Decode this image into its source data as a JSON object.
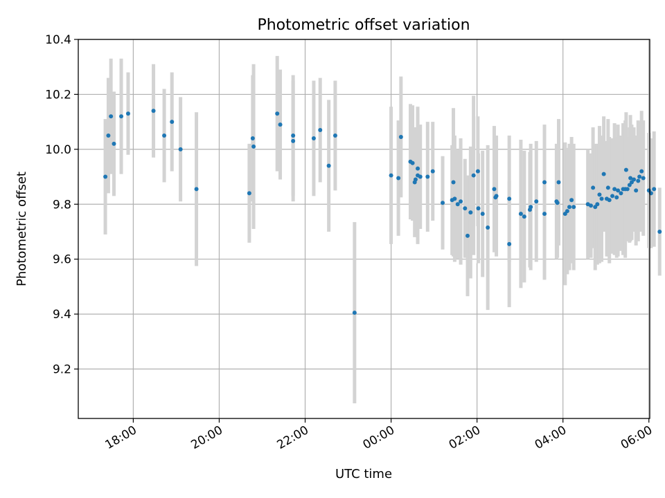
{
  "chart_data": {
    "type": "scatter",
    "title": "Photometric offset variation",
    "xlabel": "UTC time",
    "ylabel": "Photometric offset",
    "ylim": [
      9.02,
      10.4
    ],
    "xlim_hours": [
      16.72,
      30.02
    ],
    "grid": true,
    "y_ticks": [
      9.2,
      9.4,
      9.6,
      9.8,
      10.0,
      10.2,
      10.4
    ],
    "y_tick_labels": [
      "9.2",
      "9.4",
      "9.6",
      "9.8",
      "10.0",
      "10.2",
      "10.4"
    ],
    "x_ticks_hours": [
      18,
      20,
      22,
      24,
      26,
      28,
      30
    ],
    "x_tick_labels": [
      "18:00",
      "20:00",
      "22:00",
      "00:00",
      "02:00",
      "04:00",
      "06:00"
    ],
    "colors": {
      "points": "#1f77b4",
      "error_bars": "#d3d3d3"
    },
    "series": [
      {
        "x_hours": [
          17.35,
          17.42,
          17.48,
          17.55,
          17.72,
          17.88,
          18.47,
          18.72,
          18.9,
          19.1,
          19.47,
          20.7,
          20.78,
          20.8,
          21.35,
          21.42,
          21.72,
          21.72,
          22.2,
          22.35,
          22.55,
          22.7,
          23.15,
          24.0,
          24.17,
          24.23,
          24.45,
          24.5,
          24.55,
          24.57,
          24.62,
          24.62,
          24.68,
          24.85,
          24.97,
          25.2,
          25.42,
          25.45,
          25.48,
          25.55,
          25.62,
          25.72,
          25.78,
          25.85,
          25.92,
          26.02,
          26.03,
          26.13,
          26.25,
          26.4,
          26.43,
          26.45,
          26.75,
          26.75,
          27.02,
          27.1,
          27.23,
          27.25,
          27.38,
          27.57,
          27.57,
          27.85,
          27.87,
          27.9,
          28.05,
          28.1,
          28.15,
          28.2,
          28.25,
          28.58,
          28.65,
          28.7,
          28.75,
          28.8,
          28.85,
          28.9,
          28.95,
          29.02,
          29.05,
          29.08,
          29.15,
          29.2,
          29.25,
          29.28,
          29.35,
          29.4,
          29.45,
          29.47,
          29.5,
          29.55,
          29.57,
          29.6,
          29.65,
          29.7,
          29.75,
          29.78,
          29.83,
          29.87,
          30.0,
          30.05,
          30.12,
          30.25
        ],
        "y": [
          9.9,
          10.05,
          10.12,
          10.02,
          10.12,
          10.13,
          10.14,
          10.05,
          10.1,
          10.0,
          9.855,
          9.84,
          10.04,
          10.01,
          10.13,
          10.09,
          10.05,
          10.03,
          10.04,
          10.07,
          9.94,
          10.05,
          9.405,
          9.905,
          9.895,
          10.045,
          9.955,
          9.95,
          9.88,
          9.89,
          9.905,
          9.93,
          9.9,
          9.9,
          9.92,
          9.805,
          9.815,
          9.88,
          9.82,
          9.8,
          9.81,
          9.785,
          9.685,
          9.77,
          9.905,
          9.92,
          9.785,
          9.765,
          9.715,
          9.855,
          9.825,
          9.83,
          9.82,
          9.655,
          9.765,
          9.755,
          9.78,
          9.79,
          9.81,
          9.765,
          9.88,
          9.81,
          9.805,
          9.88,
          9.765,
          9.775,
          9.79,
          9.815,
          9.79,
          9.8,
          9.795,
          9.86,
          9.79,
          9.8,
          9.835,
          9.82,
          9.91,
          9.82,
          9.86,
          9.815,
          9.83,
          9.855,
          9.825,
          9.85,
          9.84,
          9.855,
          9.855,
          9.925,
          9.855,
          9.87,
          9.895,
          9.88,
          9.89,
          9.85,
          9.885,
          9.9,
          9.92,
          9.895,
          9.85,
          9.84,
          9.855,
          9.7
        ],
        "yerr": [
          0.21,
          0.21,
          0.21,
          0.19,
          0.21,
          0.15,
          0.17,
          0.17,
          0.18,
          0.19,
          0.28,
          0.18,
          0.23,
          0.3,
          0.21,
          0.2,
          0.22,
          0.22,
          0.21,
          0.19,
          0.24,
          0.2,
          0.33,
          0.25,
          0.21,
          0.22,
          0.21,
          0.21,
          0.2,
          0.19,
          0.25,
          0.2,
          0.19,
          0.2,
          0.18,
          0.17,
          0.2,
          0.27,
          0.23,
          0.2,
          0.23,
          0.18,
          0.22,
          0.24,
          0.29,
          0.2,
          0.2,
          0.23,
          0.3,
          0.23,
          0.19,
          0.22,
          0.23,
          0.23,
          0.27,
          0.24,
          0.21,
          0.23,
          0.22,
          0.24,
          0.21,
          0.21,
          0.2,
          0.23,
          0.26,
          0.23,
          0.23,
          0.23,
          0.23,
          0.2,
          0.19,
          0.22,
          0.23,
          0.22,
          0.25,
          0.23,
          0.21,
          0.21,
          0.25,
          0.23,
          0.21,
          0.24,
          0.22,
          0.24,
          0.21,
          0.24,
          0.25,
          0.21,
          0.19,
          0.21,
          0.23,
          0.21,
          0.19,
          0.2,
          0.22,
          0.2,
          0.22,
          0.21,
          0.21,
          0.2,
          0.21,
          0.16
        ]
      }
    ]
  }
}
